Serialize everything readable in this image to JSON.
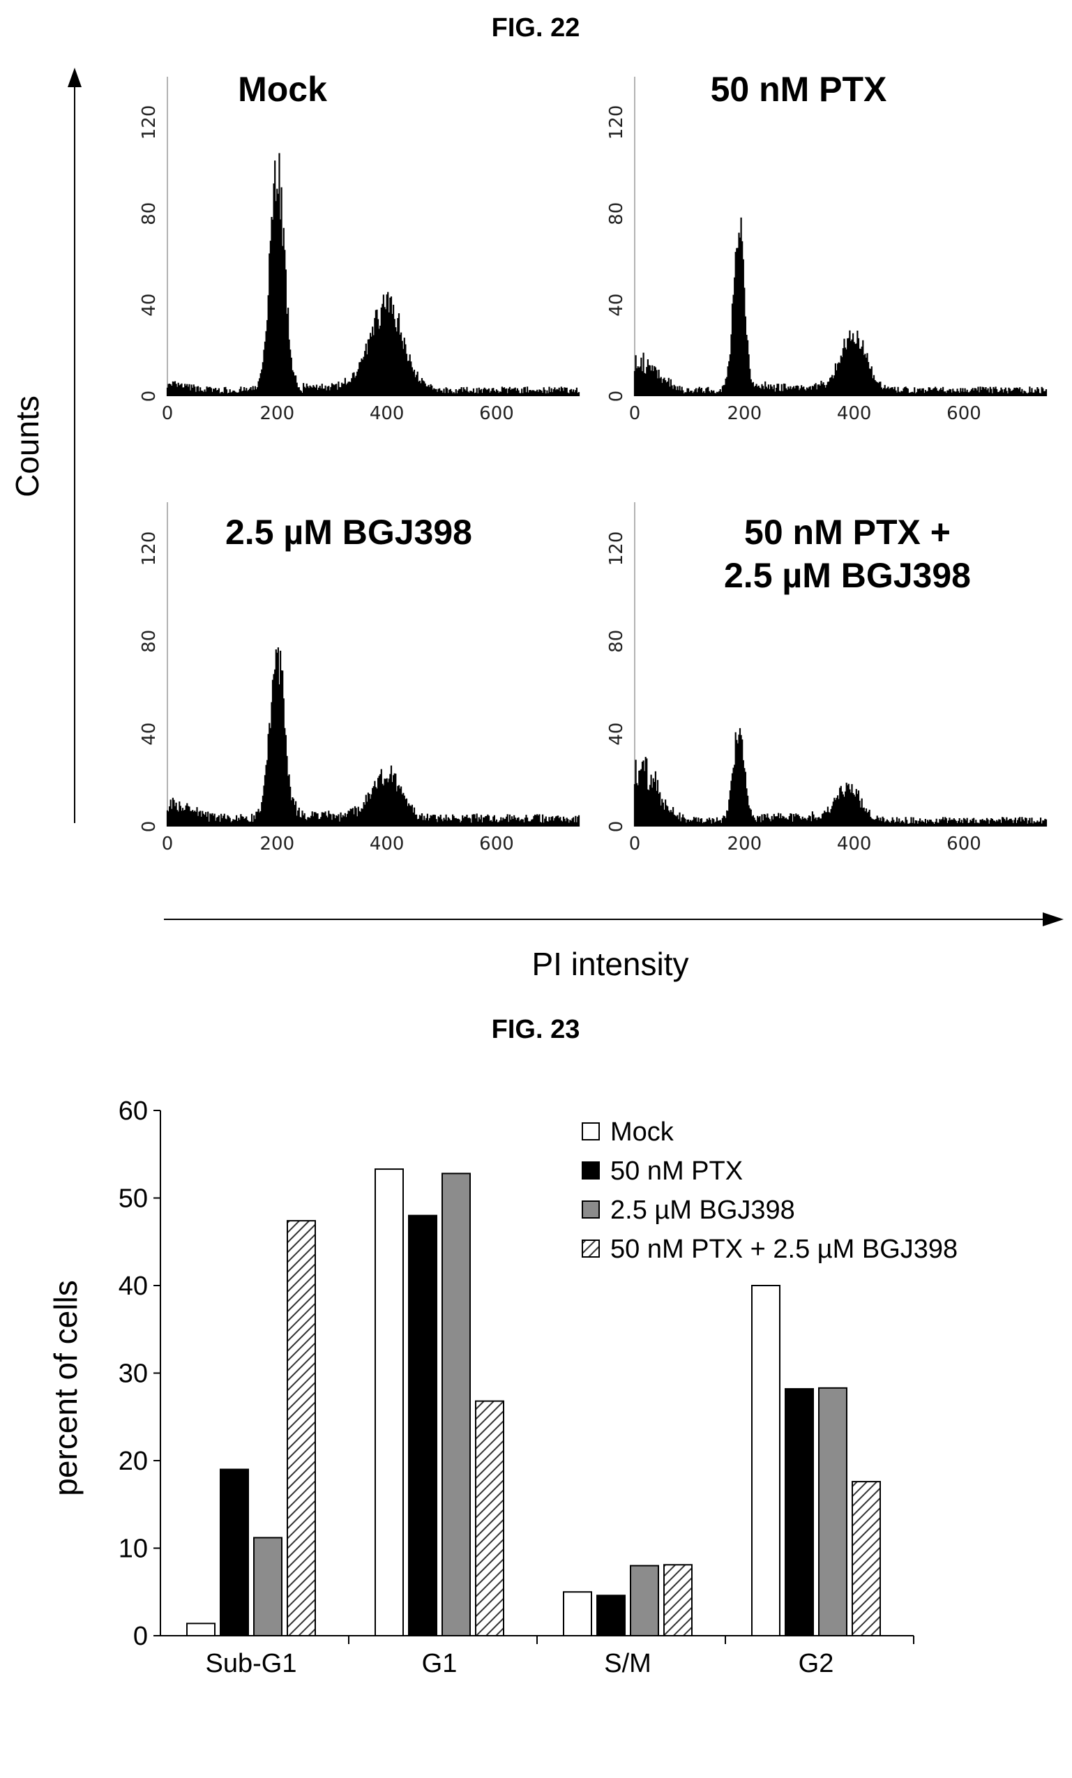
{
  "fig22": {
    "label": "FIG. 22",
    "y_axis_title": "Counts",
    "x_axis_title": "PI intensity",
    "chart_data": {
      "type": "area",
      "xlim": [
        0,
        750
      ],
      "ylim": [
        0,
        140
      ],
      "x_ticks": [
        "0",
        "200",
        "400",
        "600"
      ],
      "y_ticks": [
        "0",
        "40",
        "80",
        "120"
      ],
      "panels": [
        {
          "title_lines": [
            "Mock"
          ],
          "peaks": [
            {
              "x": 200,
              "height": 100,
              "width": 13
            },
            {
              "x": 400,
              "height": 38,
              "width": 30
            }
          ],
          "subg1": 2,
          "baseline": 3
        },
        {
          "title_lines": [
            "50 nM PTX"
          ],
          "peaks": [
            {
              "x": 190,
              "height": 72,
              "width": 10
            },
            {
              "x": 400,
              "height": 26,
              "width": 22
            }
          ],
          "subg1": 12,
          "baseline": 3
        },
        {
          "title_lines": [
            "2.5 µM BGJ398"
          ],
          "peaks": [
            {
              "x": 200,
              "height": 74,
              "width": 13
            },
            {
              "x": 400,
              "height": 20,
              "width": 25
            }
          ],
          "subg1": 6,
          "baseline": 4
        },
        {
          "title_lines": [
            "50 nM PTX +",
            "2.5 µM BGJ398"
          ],
          "peaks": [
            {
              "x": 190,
              "height": 42,
              "width": 10
            },
            {
              "x": 390,
              "height": 14,
              "width": 22
            }
          ],
          "subg1": 22,
          "baseline": 3
        }
      ]
    }
  },
  "fig23": {
    "label": "FIG. 23",
    "chart_data": {
      "type": "bar",
      "categories": [
        "Sub-G1",
        "G1",
        "S/M",
        "G2"
      ],
      "ylabel": "percent of cells",
      "ylim": [
        0,
        60
      ],
      "y_ticks": [
        "0",
        "10",
        "20",
        "30",
        "40",
        "50",
        "60"
      ],
      "legend_position": "top-right",
      "series": [
        {
          "name": "Mock",
          "fill": "white",
          "values": [
            1.4,
            53.3,
            5.0,
            40.0
          ]
        },
        {
          "name": "50 nM PTX",
          "fill": "black",
          "values": [
            19.0,
            48.0,
            4.6,
            28.2
          ]
        },
        {
          "name": "2.5 µM BGJ398",
          "fill": "gray",
          "values": [
            11.2,
            52.8,
            8.0,
            28.3
          ]
        },
        {
          "name": "50 nM PTX + 2.5 µM BGJ398",
          "fill": "hatch",
          "values": [
            47.4,
            26.8,
            8.1,
            17.6
          ]
        }
      ]
    }
  }
}
